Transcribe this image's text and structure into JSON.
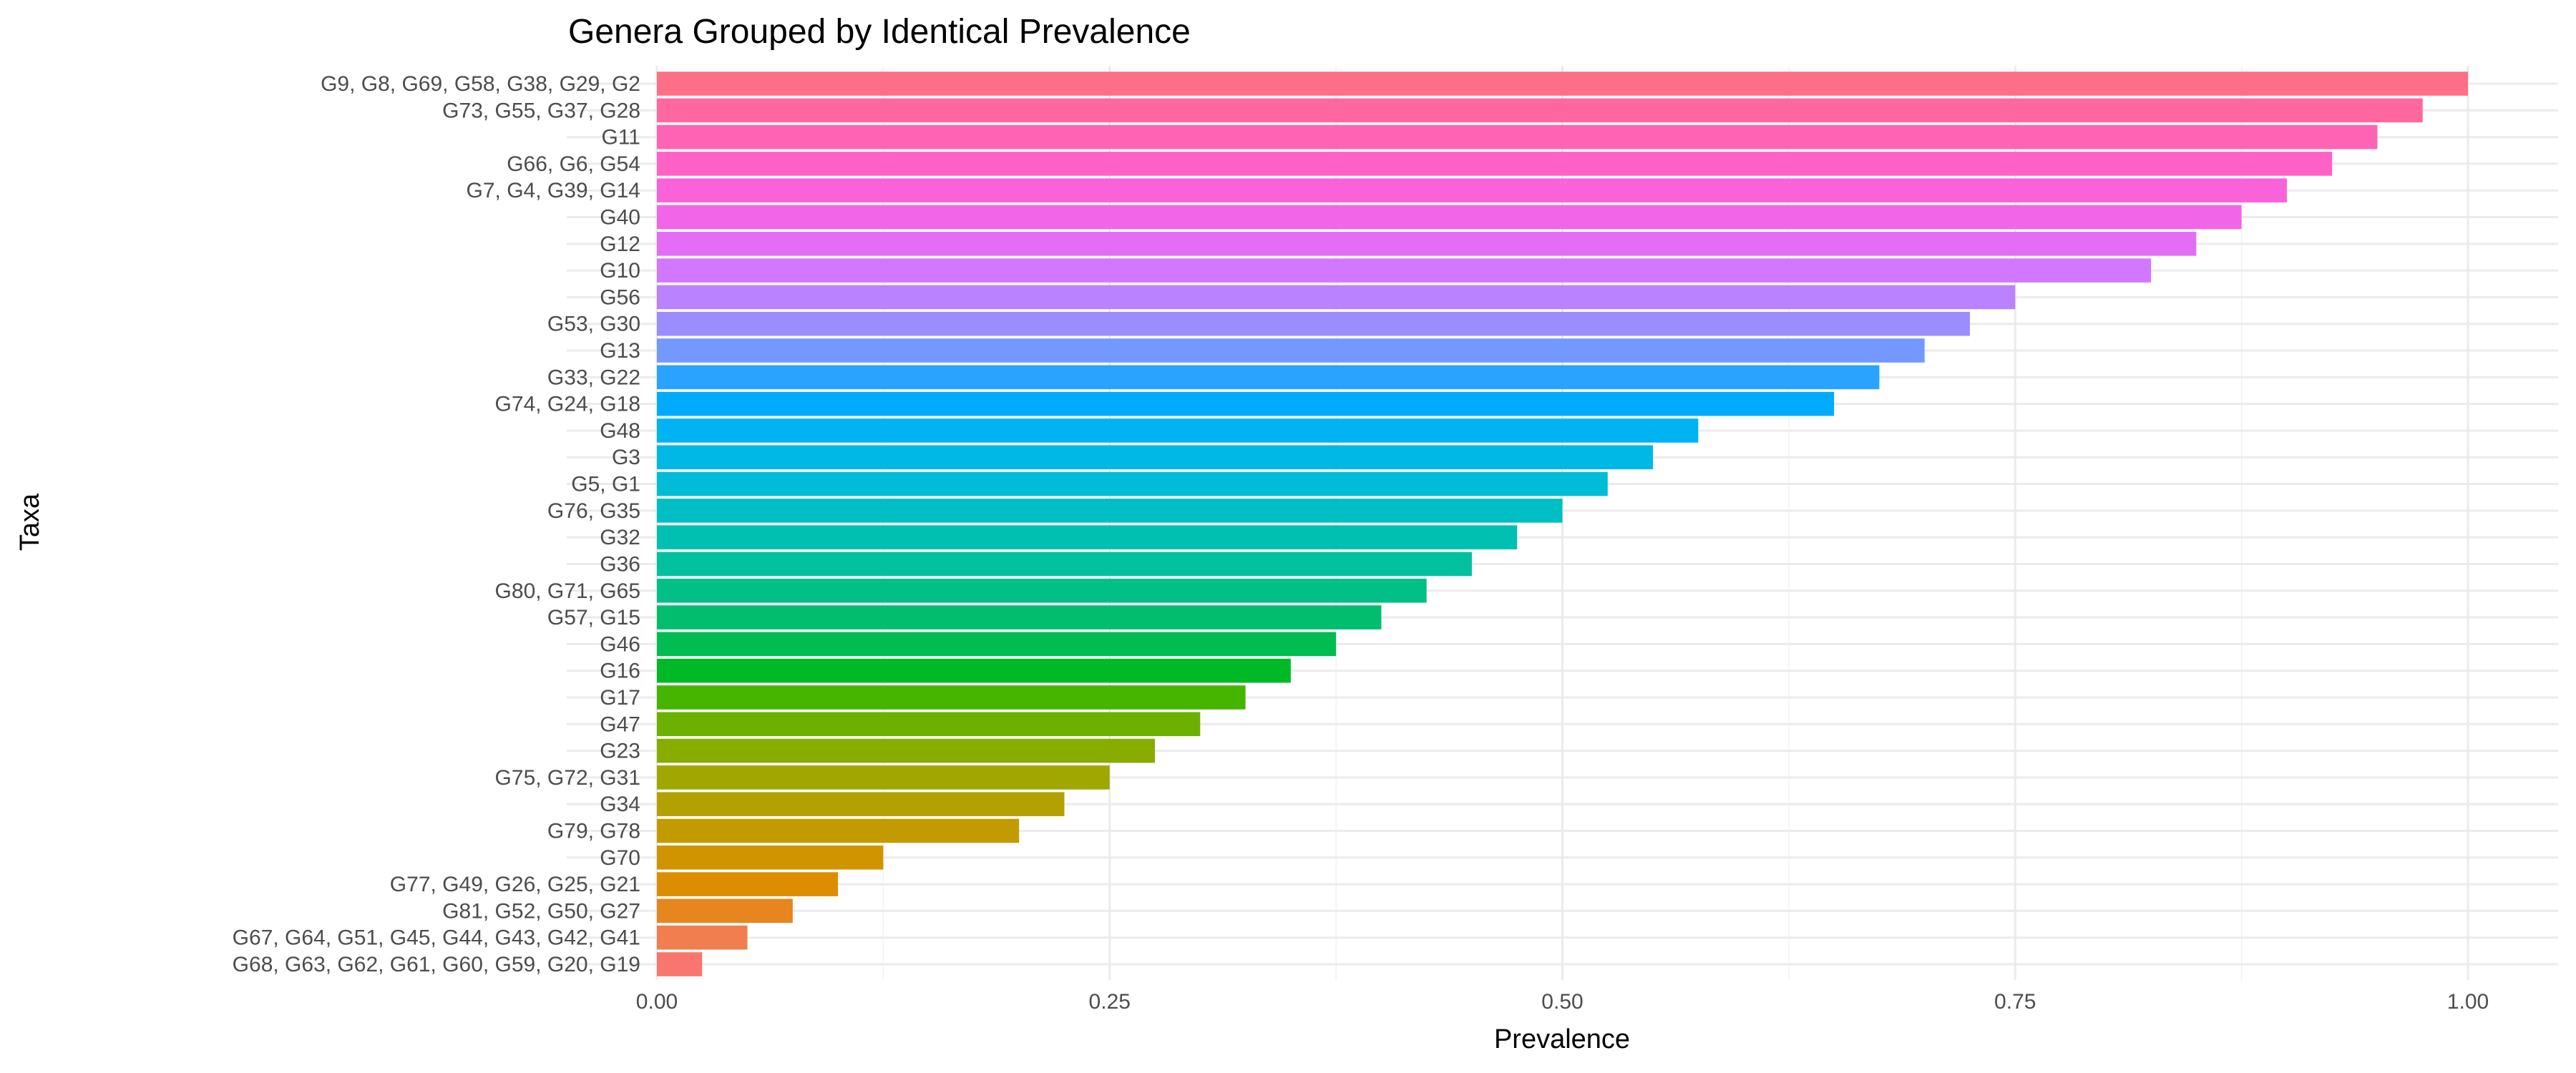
{
  "chart_data": {
    "type": "bar",
    "orientation": "horizontal",
    "title": "Genera Grouped by Identical Prevalence",
    "xlabel": "Prevalence",
    "ylabel": "Taxa",
    "xlim": [
      0,
      1
    ],
    "x_ticks": [
      "0.00",
      "0.25",
      "0.50",
      "0.75",
      "1.00"
    ],
    "grid": true,
    "legend": "none",
    "color_scheme": "hue palette, one color per category (bottom #F8766D through green, blue, to pink at top)",
    "categories": [
      "G9, G8, G69, G58, G38, G29, G2",
      "G73, G55, G37, G28",
      "G11",
      "G66, G6, G54",
      "G7, G4, G39, G14",
      "G40",
      "G12",
      "G10",
      "G56",
      "G53, G30",
      "G13",
      "G33, G22",
      "G74, G24, G18",
      "G48",
      "G3",
      "G5, G1",
      "G76, G35",
      "G32",
      "G36",
      "G80, G71, G65",
      "G57, G15",
      "G46",
      "G16",
      "G17",
      "G47",
      "G23",
      "G75, G72, G31",
      "G34",
      "G79, G78",
      "G70",
      "G77, G49, G26, G25, G21",
      "G81, G52, G50, G27",
      "G67, G64, G51, G45, G44, G43, G42, G41",
      "G68, G63, G62, G61, G60, G59, G20, G19"
    ],
    "values": [
      1.0,
      0.975,
      0.95,
      0.925,
      0.9,
      0.875,
      0.85,
      0.825,
      0.75,
      0.725,
      0.7,
      0.675,
      0.65,
      0.575,
      0.55,
      0.525,
      0.5,
      0.475,
      0.45,
      0.425,
      0.4,
      0.375,
      0.35,
      0.325,
      0.3,
      0.275,
      0.25,
      0.225,
      0.2,
      0.125,
      0.1,
      0.075,
      0.05,
      0.025
    ]
  }
}
